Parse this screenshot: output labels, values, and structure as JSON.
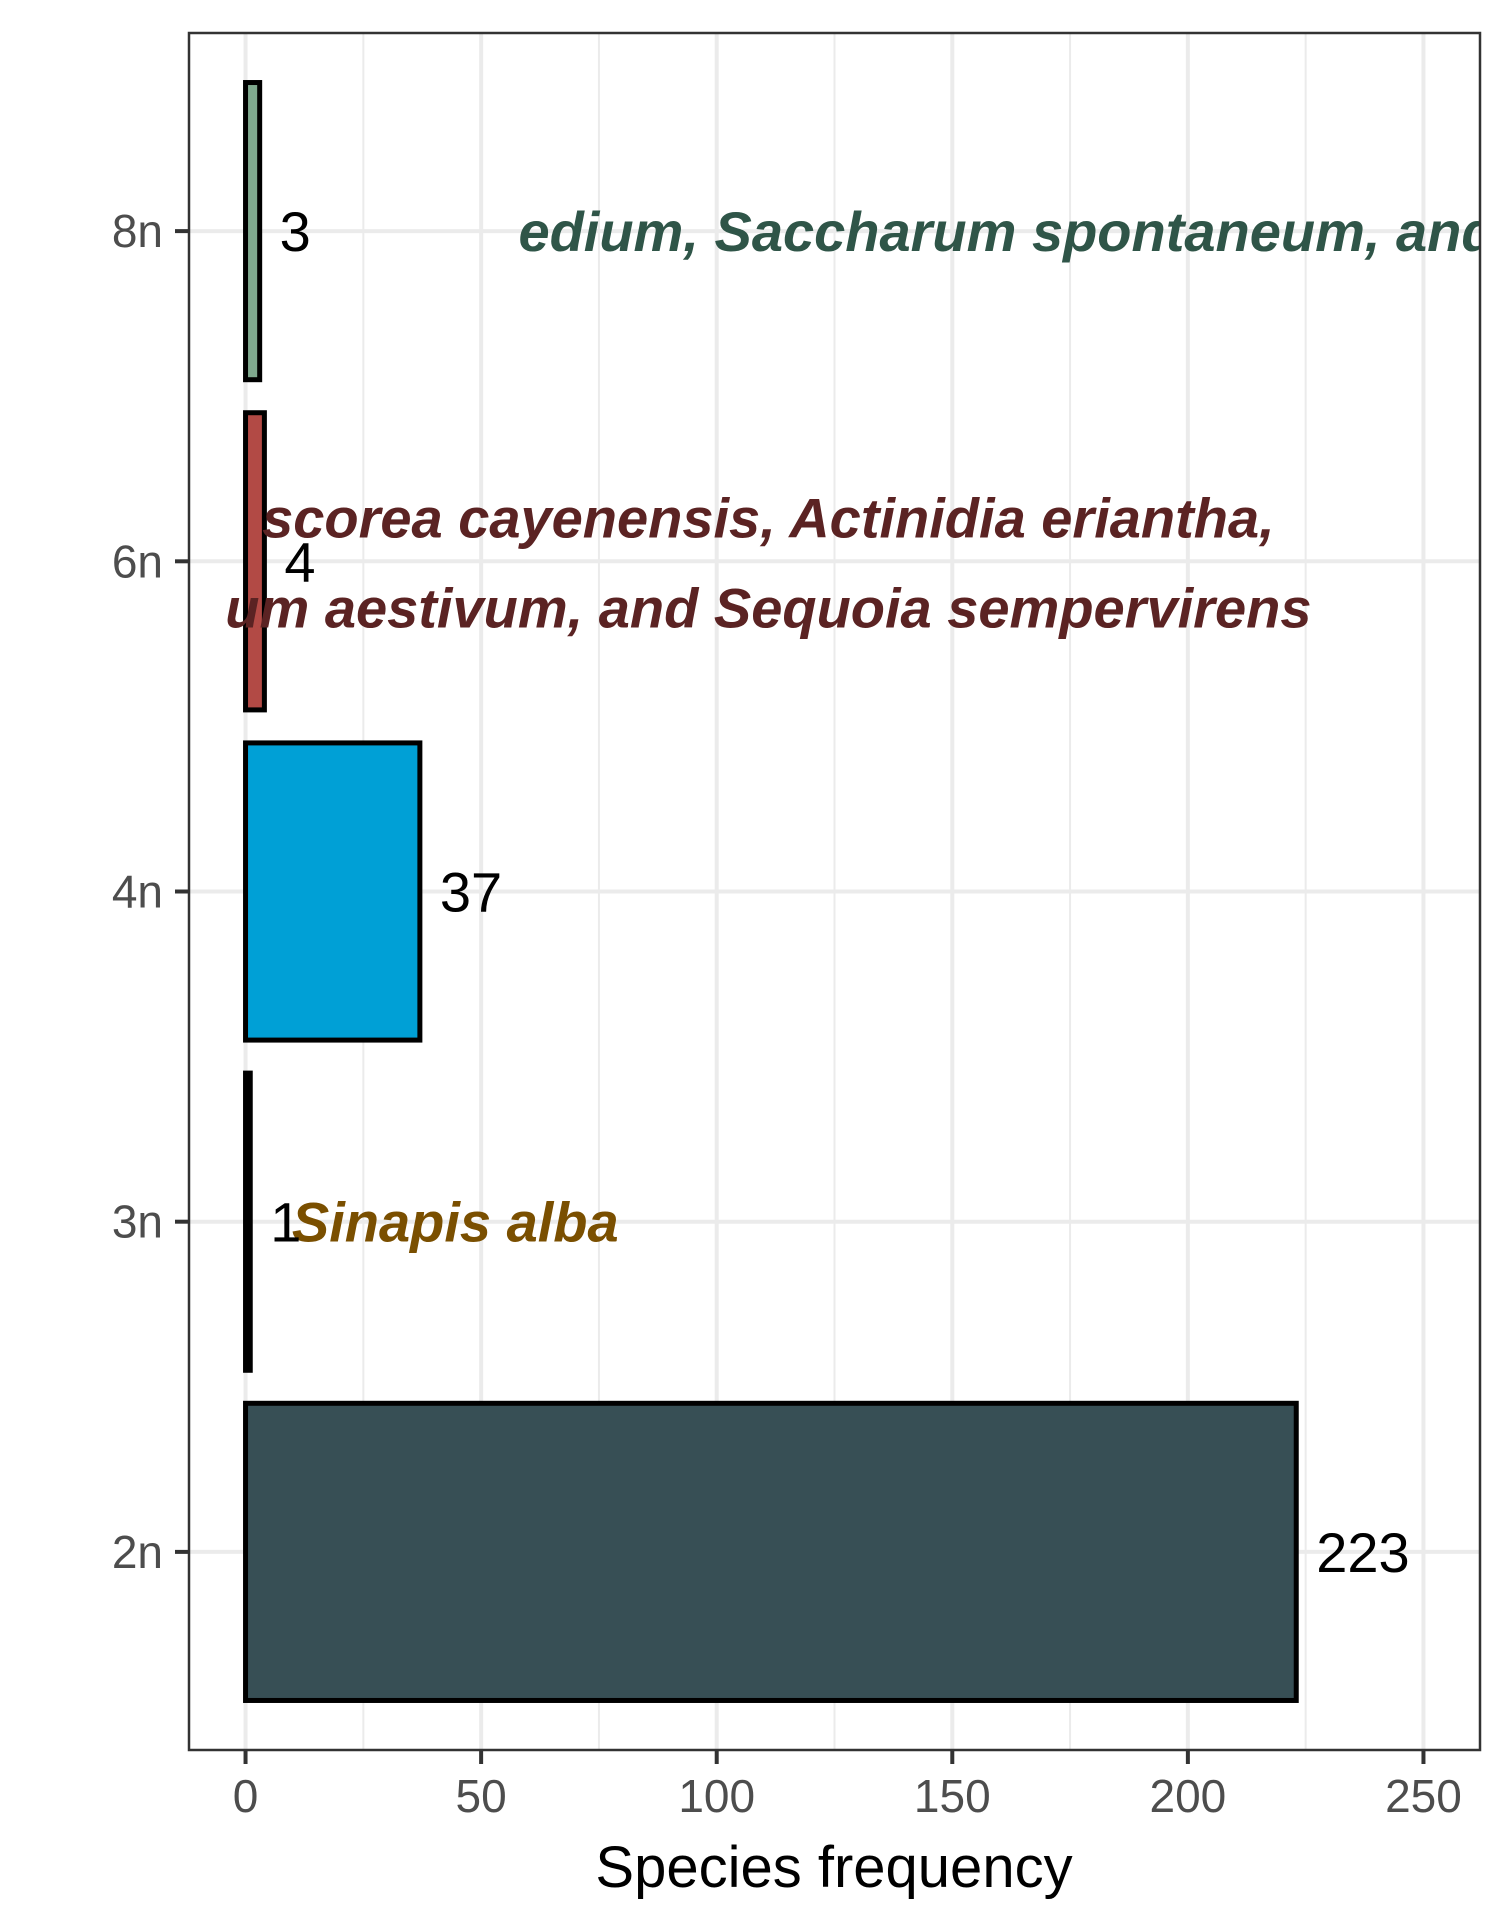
{
  "chart_data": {
    "type": "bar",
    "orientation": "horizontal",
    "categories": [
      "2n",
      "3n",
      "4n",
      "6n",
      "8n"
    ],
    "values": [
      223,
      1,
      37,
      4,
      3
    ],
    "data_labels": [
      "223",
      "1",
      "37",
      "4",
      "3"
    ],
    "colors": [
      "#374f55",
      "#000000",
      "#00a0d6",
      "#b24a45",
      "#7fa98e"
    ],
    "annotations": [
      {
        "category": "3n",
        "lines": [
          "Sinapis alba"
        ],
        "color": "#7a4f00"
      },
      {
        "category": "6n",
        "lines": [
          "scorea cayenensis, Actinidia eriantha,",
          "um aestivum, and Sequoia sempervirens"
        ],
        "color": "#5b2323"
      },
      {
        "category": "8n",
        "lines": [
          "edium, Saccharum spontaneum, and Cuscut"
        ],
        "color": "#2f5548"
      }
    ],
    "title": "",
    "xlabel": "Species frequency",
    "ylabel": "",
    "xlim": [
      -12,
      262
    ],
    "xticks": [
      0,
      50,
      100,
      150,
      200,
      250
    ],
    "xtick_labels": [
      "0",
      "50",
      "100",
      "150",
      "200",
      "250"
    ],
    "grid": true,
    "legend": "none"
  }
}
